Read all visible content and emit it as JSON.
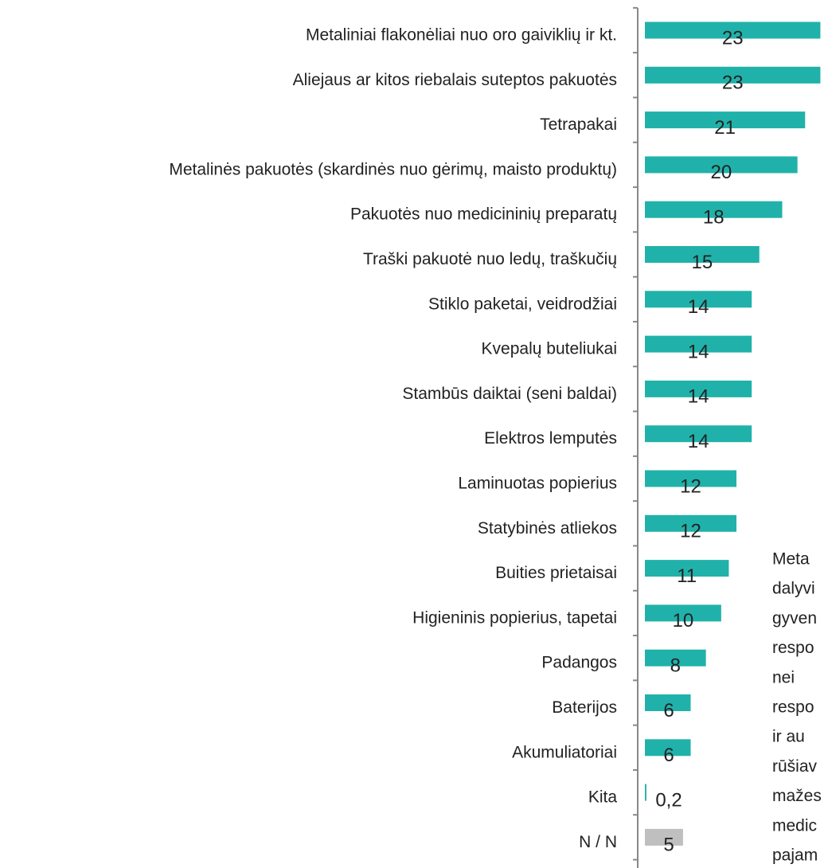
{
  "chart_data": {
    "type": "barh",
    "categories": [
      "Metaliniai flakonėliai nuo oro gaiviklių ir kt.",
      "Aliejaus ar kitos riebalais suteptos pakuotės",
      "Tetrapakai",
      "Metalinės pakuotės (skardinės nuo gėrimų, maisto produktų)",
      "Pakuotės nuo medicininių preparatų",
      "Traški pakuotė nuo ledų, traškučių",
      "Stiklo paketai, veidrodžiai",
      "Kvepalų buteliukai",
      "Stambūs daiktai (seni baldai)",
      "Elektros lemputės",
      "Laminuotas popierius",
      "Statybinės atliekos",
      "Buities prietaisai",
      "Higieninis popierius, tapetai",
      "Padangos",
      "Baterijos",
      "Akumuliatoriai",
      "Kita",
      "N / N"
    ],
    "values": [
      23,
      23,
      21,
      20,
      18,
      15,
      14,
      14,
      14,
      14,
      12,
      12,
      11,
      10,
      8,
      6,
      6,
      0.2,
      5
    ],
    "value_labels": [
      "23",
      "23",
      "21",
      "20",
      "18",
      "15",
      "14",
      "14",
      "14",
      "14",
      "12",
      "12",
      "11",
      "10",
      "8",
      "6",
      "6",
      "0,2",
      "5"
    ],
    "colors": [
      "#20b2aa",
      "#20b2aa",
      "#20b2aa",
      "#20b2aa",
      "#20b2aa",
      "#20b2aa",
      "#20b2aa",
      "#20b2aa",
      "#20b2aa",
      "#20b2aa",
      "#20b2aa",
      "#20b2aa",
      "#20b2aa",
      "#20b2aa",
      "#20b2aa",
      "#20b2aa",
      "#20b2aa",
      "#20b2aa",
      "#bfbfbf"
    ],
    "xlim": [
      0,
      24
    ],
    "annotation": [
      "Meta",
      "dalyvi",
      "gyven",
      "respo",
      "nei",
      "respo",
      "ir au",
      "rūšiav",
      "mažes",
      "medic",
      "pajam"
    ]
  }
}
